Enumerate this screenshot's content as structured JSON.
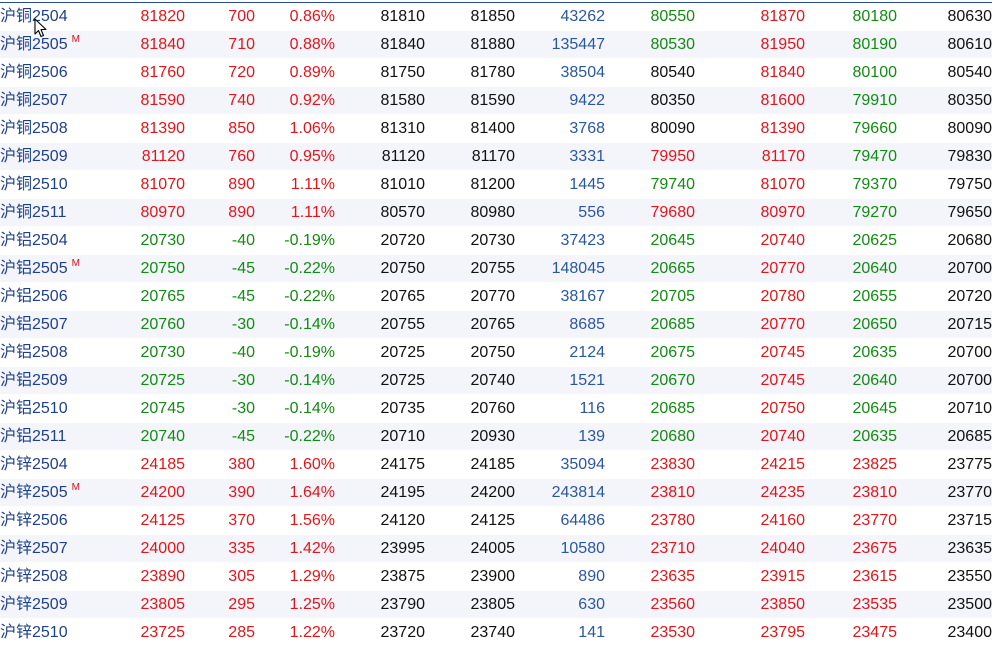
{
  "rows": [
    {
      "name": "沪铜2504",
      "m": "",
      "last": "81820",
      "chg": "700",
      "pct": "0.86%",
      "bid": "81810",
      "ask": "81850",
      "vol": "43262",
      "open": "80550",
      "high": "81870",
      "low": "80180",
      "prev": "80630",
      "dir": "up"
    },
    {
      "name": "沪铜2505",
      "m": "M",
      "last": "81840",
      "chg": "710",
      "pct": "0.88%",
      "bid": "81840",
      "ask": "81880",
      "vol": "135447",
      "open": "80530",
      "high": "81950",
      "low": "80190",
      "prev": "80610",
      "dir": "up"
    },
    {
      "name": "沪铜2506",
      "m": "",
      "last": "81760",
      "chg": "720",
      "pct": "0.89%",
      "bid": "81750",
      "ask": "81780",
      "vol": "38504",
      "open": "80540",
      "high": "81840",
      "low": "80100",
      "prev": "80540",
      "dir": "up"
    },
    {
      "name": "沪铜2507",
      "m": "",
      "last": "81590",
      "chg": "740",
      "pct": "0.92%",
      "bid": "81580",
      "ask": "81590",
      "vol": "9422",
      "open": "80350",
      "high": "81600",
      "low": "79910",
      "prev": "80350",
      "dir": "up"
    },
    {
      "name": "沪铜2508",
      "m": "",
      "last": "81390",
      "chg": "850",
      "pct": "1.06%",
      "bid": "81310",
      "ask": "81400",
      "vol": "3768",
      "open": "80090",
      "high": "81390",
      "low": "79660",
      "prev": "80090",
      "dir": "up"
    },
    {
      "name": "沪铜2509",
      "m": "",
      "last": "81120",
      "chg": "760",
      "pct": "0.95%",
      "bid": "81120",
      "ask": "81170",
      "vol": "3331",
      "open": "79950",
      "high": "81170",
      "low": "79470",
      "prev": "79830",
      "dir": "up"
    },
    {
      "name": "沪铜2510",
      "m": "",
      "last": "81070",
      "chg": "890",
      "pct": "1.11%",
      "bid": "81010",
      "ask": "81200",
      "vol": "1445",
      "open": "79740",
      "high": "81070",
      "low": "79370",
      "prev": "79750",
      "dir": "up"
    },
    {
      "name": "沪铜2511",
      "m": "",
      "last": "80970",
      "chg": "890",
      "pct": "1.11%",
      "bid": "80570",
      "ask": "80980",
      "vol": "556",
      "open": "79680",
      "high": "80970",
      "low": "79270",
      "prev": "79650",
      "dir": "up"
    },
    {
      "name": "沪铝2504",
      "m": "",
      "last": "20730",
      "chg": "-40",
      "pct": "-0.19%",
      "bid": "20720",
      "ask": "20730",
      "vol": "37423",
      "open": "20645",
      "high": "20740",
      "low": "20625",
      "prev": "20680",
      "dir": "down"
    },
    {
      "name": "沪铝2505",
      "m": "M",
      "last": "20750",
      "chg": "-45",
      "pct": "-0.22%",
      "bid": "20750",
      "ask": "20755",
      "vol": "148045",
      "open": "20665",
      "high": "20770",
      "low": "20640",
      "prev": "20700",
      "dir": "down"
    },
    {
      "name": "沪铝2506",
      "m": "",
      "last": "20765",
      "chg": "-45",
      "pct": "-0.22%",
      "bid": "20765",
      "ask": "20770",
      "vol": "38167",
      "open": "20705",
      "high": "20780",
      "low": "20655",
      "prev": "20720",
      "dir": "down"
    },
    {
      "name": "沪铝2507",
      "m": "",
      "last": "20760",
      "chg": "-30",
      "pct": "-0.14%",
      "bid": "20755",
      "ask": "20765",
      "vol": "8685",
      "open": "20685",
      "high": "20770",
      "low": "20650",
      "prev": "20715",
      "dir": "down"
    },
    {
      "name": "沪铝2508",
      "m": "",
      "last": "20730",
      "chg": "-40",
      "pct": "-0.19%",
      "bid": "20725",
      "ask": "20750",
      "vol": "2124",
      "open": "20675",
      "high": "20745",
      "low": "20635",
      "prev": "20700",
      "dir": "down"
    },
    {
      "name": "沪铝2509",
      "m": "",
      "last": "20725",
      "chg": "-30",
      "pct": "-0.14%",
      "bid": "20725",
      "ask": "20740",
      "vol": "1521",
      "open": "20670",
      "high": "20745",
      "low": "20640",
      "prev": "20700",
      "dir": "down"
    },
    {
      "name": "沪铝2510",
      "m": "",
      "last": "20745",
      "chg": "-30",
      "pct": "-0.14%",
      "bid": "20735",
      "ask": "20760",
      "vol": "116",
      "open": "20685",
      "high": "20750",
      "low": "20645",
      "prev": "20710",
      "dir": "down"
    },
    {
      "name": "沪铝2511",
      "m": "",
      "last": "20740",
      "chg": "-45",
      "pct": "-0.22%",
      "bid": "20710",
      "ask": "20930",
      "vol": "139",
      "open": "20680",
      "high": "20740",
      "low": "20635",
      "prev": "20685",
      "dir": "down"
    },
    {
      "name": "沪锌2504",
      "m": "",
      "last": "24185",
      "chg": "380",
      "pct": "1.60%",
      "bid": "24175",
      "ask": "24185",
      "vol": "35094",
      "open": "23830",
      "high": "24215",
      "low": "23825",
      "prev": "23775",
      "dir": "up"
    },
    {
      "name": "沪锌2505",
      "m": "M",
      "last": "24200",
      "chg": "390",
      "pct": "1.64%",
      "bid": "24195",
      "ask": "24200",
      "vol": "243814",
      "open": "23810",
      "high": "24235",
      "low": "23810",
      "prev": "23770",
      "dir": "up"
    },
    {
      "name": "沪锌2506",
      "m": "",
      "last": "24125",
      "chg": "370",
      "pct": "1.56%",
      "bid": "24120",
      "ask": "24125",
      "vol": "64486",
      "open": "23780",
      "high": "24160",
      "low": "23770",
      "prev": "23715",
      "dir": "up"
    },
    {
      "name": "沪锌2507",
      "m": "",
      "last": "24000",
      "chg": "335",
      "pct": "1.42%",
      "bid": "23995",
      "ask": "24005",
      "vol": "10580",
      "open": "23710",
      "high": "24040",
      "low": "23675",
      "prev": "23635",
      "dir": "up"
    },
    {
      "name": "沪锌2508",
      "m": "",
      "last": "23890",
      "chg": "305",
      "pct": "1.29%",
      "bid": "23875",
      "ask": "23900",
      "vol": "890",
      "open": "23635",
      "high": "23915",
      "low": "23615",
      "prev": "23550",
      "dir": "up"
    },
    {
      "name": "沪锌2509",
      "m": "",
      "last": "23805",
      "chg": "295",
      "pct": "1.25%",
      "bid": "23790",
      "ask": "23805",
      "vol": "630",
      "open": "23560",
      "high": "23850",
      "low": "23535",
      "prev": "23500",
      "dir": "up"
    },
    {
      "name": "沪锌2510",
      "m": "",
      "last": "23725",
      "chg": "285",
      "pct": "1.22%",
      "bid": "23720",
      "ask": "23740",
      "vol": "141",
      "open": "23530",
      "high": "23795",
      "low": "23475",
      "prev": "23400",
      "dir": "up"
    }
  ],
  "colors": {
    "up": "#e0161b",
    "down": "#138a13",
    "flat": "#111111",
    "volume": "#2a57a0",
    "name": "#1e3f8a",
    "main_marker": "#d01818",
    "header_line": "#2a4d8f"
  },
  "icons": {
    "cursor": "mouse-pointer-icon"
  }
}
